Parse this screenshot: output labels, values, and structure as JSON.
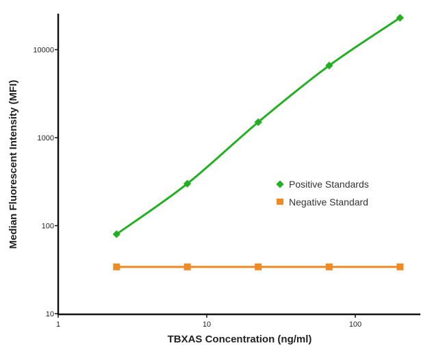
{
  "chart_data": {
    "type": "line",
    "title": "",
    "xlabel": "TBXAS Concentration (ng/ml)",
    "ylabel": "Median Fluorescent Intensity (MFI)",
    "x_scale": "log",
    "y_scale": "log",
    "xlim": [
      1,
      300
    ],
    "ylim": [
      10,
      26000
    ],
    "x_ticks": [
      "1",
      "10",
      "100"
    ],
    "y_ticks": [
      "10",
      "100",
      "1000",
      "10000"
    ],
    "grid": false,
    "legend_position": "right-middle",
    "x": [
      2.47,
      7.4,
      22.2,
      66.7,
      200
    ],
    "series": [
      {
        "name": "Positive Standards",
        "color": "#22b022",
        "marker": "diamond",
        "smooth": true,
        "values": [
          80,
          300,
          1500,
          6600,
          23000
        ]
      },
      {
        "name": "Negative Standard",
        "color": "#f08a24",
        "marker": "square",
        "smooth": false,
        "values": [
          34,
          34,
          34,
          34,
          34
        ]
      }
    ]
  }
}
